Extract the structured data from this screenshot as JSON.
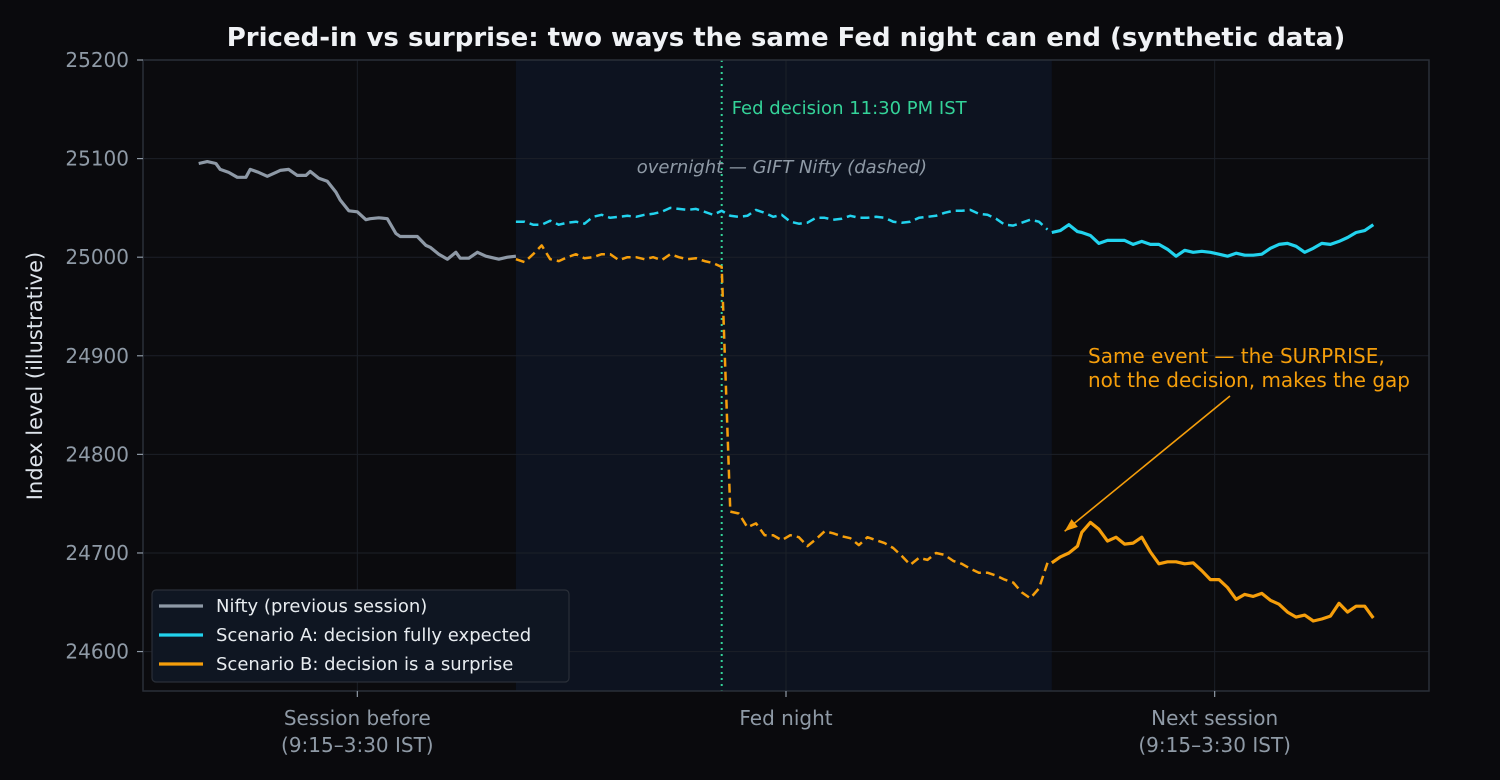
{
  "chart_data": {
    "type": "line",
    "title": "Priced-in vs surprise: two ways the same Fed night can end (synthetic data)",
    "ylabel": "Index level (illustrative)",
    "xlabel": "",
    "ylim": [
      24560,
      25200
    ],
    "xlim": [
      -0.5,
      2.5
    ],
    "grid": true,
    "legend_position": "bottom-left",
    "y_ticks": [
      24600,
      24700,
      24800,
      24900,
      25000,
      25100,
      25200
    ],
    "x_ticks": [
      {
        "x": 0,
        "lines": [
          "Session before",
          "(9:15–3:30 IST)"
        ]
      },
      {
        "x": 1,
        "lines": [
          "Fed night"
        ]
      },
      {
        "x": 2,
        "lines": [
          "Next session",
          "(9:15–3:30 IST)"
        ]
      }
    ],
    "regions": {
      "overnight_x": [
        0.37,
        1.62
      ]
    },
    "decision_x": 0.85,
    "decision_label": "Fed decision 11:30 PM IST",
    "overnight_label": "overnight — GIFT Nifty (dashed)",
    "annotation": {
      "lines": [
        "Same event — the SURPRISE,",
        "not the decision, makes the gap"
      ],
      "arrow_to": [
        1.65,
        24722
      ]
    },
    "series": [
      {
        "name": "Nifty (previous session)",
        "color": "#8e99a6",
        "style": "solid",
        "x": [
          -0.37,
          -0.35,
          -0.33,
          -0.32,
          -0.3,
          -0.28,
          -0.26,
          -0.25,
          -0.23,
          -0.21,
          -0.19,
          -0.18,
          -0.16,
          -0.14,
          -0.12,
          -0.11,
          -0.09,
          -0.07,
          -0.05,
          -0.04,
          -0.02,
          0.0,
          0.02,
          0.03,
          0.05,
          0.07,
          0.09,
          0.1,
          0.12,
          0.14,
          0.16,
          0.17,
          0.19,
          0.21,
          0.23,
          0.24,
          0.26,
          0.28,
          0.3,
          0.31,
          0.33,
          0.35,
          0.37
        ],
        "y": [
          25095,
          25097,
          25095,
          25089,
          25086,
          25081,
          25081,
          25089,
          25086,
          25082,
          25086,
          25088,
          25089,
          25083,
          25083,
          25087,
          25080,
          25077,
          25066,
          25058,
          25047,
          25046,
          25038,
          25039,
          25040,
          25039,
          25024,
          25021,
          25021,
          25021,
          25012,
          25010,
          25003,
          24998,
          25005,
          24999,
          24999,
          25005,
          25001,
          25000,
          24998,
          25000,
          25001
        ]
      },
      {
        "name": "Scenario A: decision fully expected",
        "color": "#22d3ee",
        "style": "dashed",
        "x": [
          0.37,
          0.39,
          0.41,
          0.43,
          0.45,
          0.47,
          0.49,
          0.51,
          0.53,
          0.55,
          0.57,
          0.59,
          0.61,
          0.63,
          0.65,
          0.67,
          0.69,
          0.71,
          0.73,
          0.75,
          0.77,
          0.79,
          0.81,
          0.83,
          0.85,
          0.87,
          0.89,
          0.91,
          0.93,
          0.95,
          0.97,
          0.99,
          1.01,
          1.03,
          1.05,
          1.07,
          1.09,
          1.11,
          1.13,
          1.15,
          1.17,
          1.19,
          1.21,
          1.23,
          1.25,
          1.27,
          1.29,
          1.31,
          1.33,
          1.35,
          1.37,
          1.39,
          1.41,
          1.43,
          1.45,
          1.47,
          1.49,
          1.51,
          1.53,
          1.55,
          1.57,
          1.59,
          1.61
        ],
        "y": [
          25036,
          25036,
          25033,
          25033,
          25037,
          25033,
          25035,
          25036,
          25034,
          25041,
          25043,
          25040,
          25041,
          25042,
          25041,
          25043,
          25044,
          25046,
          25050,
          25049,
          25048,
          25049,
          25046,
          25043,
          25047,
          25042,
          25041,
          25042,
          25048,
          25045,
          25041,
          25043,
          25036,
          25034,
          25035,
          25040,
          25040,
          25038,
          25039,
          25042,
          25040,
          25040,
          25041,
          25040,
          25036,
          25035,
          25036,
          25040,
          25041,
          25042,
          25045,
          25047,
          25047,
          25048,
          25044,
          25043,
          25039,
          25033,
          25032,
          25035,
          25038,
          25036,
          25028
        ]
      },
      {
        "name": "Scenario A: decision fully expected",
        "color": "#22d3ee",
        "style": "solid",
        "legend": false,
        "x": [
          1.62,
          1.64,
          1.66,
          1.68,
          1.69,
          1.71,
          1.73,
          1.75,
          1.77,
          1.79,
          1.81,
          1.83,
          1.85,
          1.87,
          1.89,
          1.91,
          1.93,
          1.95,
          1.97,
          1.99,
          2.01,
          2.03,
          2.05,
          2.07,
          2.09,
          2.11,
          2.13,
          2.15,
          2.17,
          2.19,
          2.21,
          2.23,
          2.25,
          2.27,
          2.29,
          2.31,
          2.33,
          2.35,
          2.37
        ],
        "y": [
          25025,
          25027,
          25033,
          25026,
          25025,
          25022,
          25014,
          25017,
          25017,
          25017,
          25013,
          25016,
          25013,
          25013,
          25008,
          25001,
          25007,
          25005,
          25006,
          25005,
          25003,
          25001,
          25004,
          25002,
          25002,
          25003,
          25009,
          25013,
          25014,
          25011,
          25005,
          25009,
          25014,
          25013,
          25016,
          25020,
          25025,
          25027,
          25033
        ]
      },
      {
        "name": "Scenario B: decision is a surprise",
        "color": "#f59e0b",
        "style": "dashed",
        "x": [
          0.37,
          0.39,
          0.41,
          0.43,
          0.45,
          0.47,
          0.49,
          0.51,
          0.53,
          0.55,
          0.57,
          0.59,
          0.61,
          0.63,
          0.65,
          0.67,
          0.69,
          0.71,
          0.73,
          0.75,
          0.77,
          0.79,
          0.81,
          0.83,
          0.85,
          0.87,
          0.89,
          0.91,
          0.93,
          0.95,
          0.97,
          0.99,
          1.01,
          1.03,
          1.05,
          1.07,
          1.09,
          1.11,
          1.13,
          1.15,
          1.17,
          1.19,
          1.21,
          1.23,
          1.25,
          1.27,
          1.29,
          1.31,
          1.33,
          1.35,
          1.37,
          1.39,
          1.41,
          1.43,
          1.45,
          1.47,
          1.49,
          1.51,
          1.53,
          1.55,
          1.57,
          1.59,
          1.61
        ],
        "y": [
          24998,
          24995,
          25003,
          25012,
          24998,
          24996,
          25000,
          25003,
          24999,
          25000,
          25003,
          25003,
          24997,
          25000,
          25000,
          24998,
          25000,
          24997,
          25003,
          25000,
          24998,
          24999,
          24996,
          24994,
          24990,
          24742,
          24740,
          24726,
          24730,
          24718,
          24718,
          24713,
          24718,
          24716,
          24707,
          24714,
          24722,
          24720,
          24717,
          24715,
          24708,
          24716,
          24713,
          24710,
          24705,
          24697,
          24688,
          24695,
          24693,
          24700,
          24698,
          24692,
          24689,
          24684,
          24680,
          24680,
          24677,
          24673,
          24670,
          24660,
          24654,
          24664,
          24690
        ]
      },
      {
        "name": "Scenario B: decision is a surprise",
        "color": "#f59e0b",
        "style": "solid",
        "legend": false,
        "x": [
          1.62,
          1.64,
          1.66,
          1.68,
          1.69,
          1.71,
          1.73,
          1.75,
          1.77,
          1.79,
          1.81,
          1.83,
          1.85,
          1.87,
          1.89,
          1.91,
          1.93,
          1.95,
          1.97,
          1.99,
          2.01,
          2.03,
          2.05,
          2.07,
          2.09,
          2.11,
          2.13,
          2.15,
          2.17,
          2.19,
          2.21,
          2.23,
          2.25,
          2.27,
          2.29,
          2.31,
          2.33,
          2.35,
          2.37
        ],
        "y": [
          24690,
          24696,
          24700,
          24707,
          24721,
          24731,
          24724,
          24712,
          24716,
          24709,
          24710,
          24716,
          24701,
          24689,
          24691,
          24691,
          24689,
          24690,
          24682,
          24673,
          24673,
          24665,
          24653,
          24658,
          24656,
          24659,
          24652,
          24648,
          24640,
          24635,
          24637,
          24631,
          24633,
          24636,
          24649,
          24640,
          24646,
          24646,
          24634
        ]
      }
    ]
  }
}
